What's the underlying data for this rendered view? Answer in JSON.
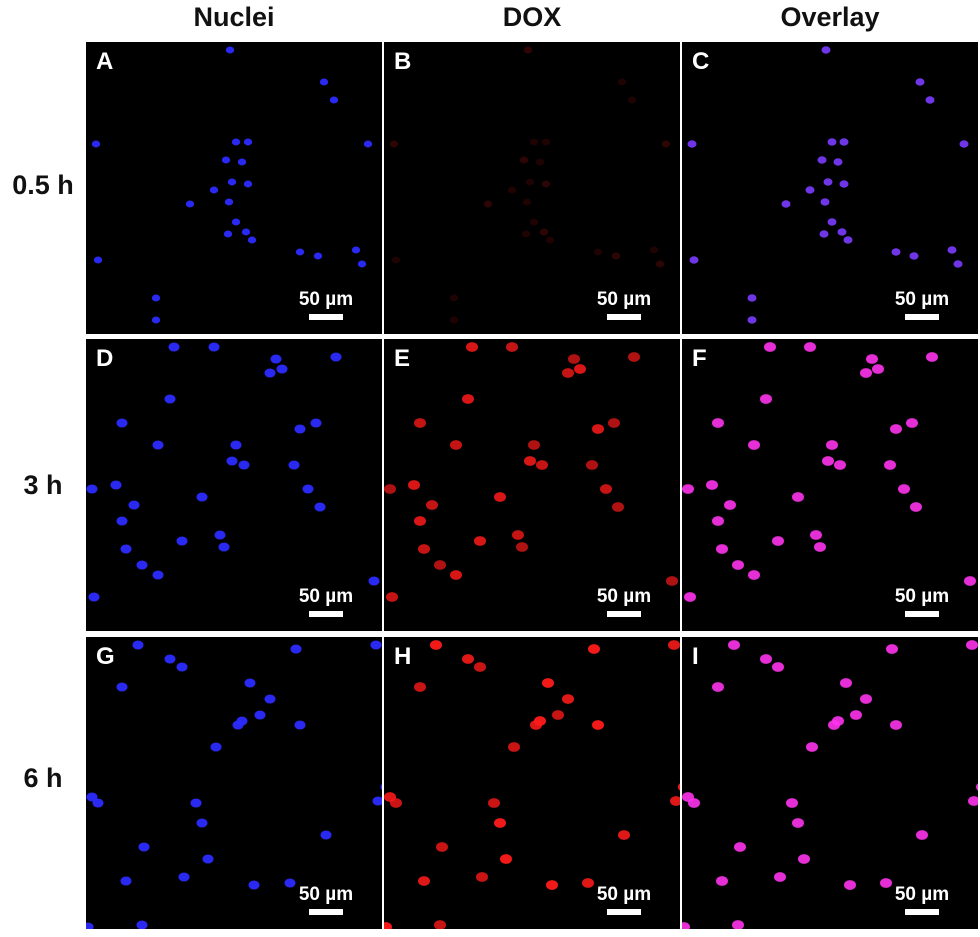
{
  "figure": {
    "columns": [
      {
        "title": "Nuclei",
        "channel": "nuclei"
      },
      {
        "title": "DOX",
        "channel": "dox"
      },
      {
        "title": "Overlay",
        "channel": "overlay"
      }
    ],
    "rows": [
      {
        "label": "0.5 h",
        "dox_intensity": 0.18,
        "panels": [
          "A",
          "B",
          "C"
        ]
      },
      {
        "label": "3 h",
        "dox_intensity": 0.85,
        "panels": [
          "D",
          "E",
          "F"
        ]
      },
      {
        "label": "6 h",
        "dox_intensity": 0.95,
        "panels": [
          "G",
          "H",
          "I"
        ]
      }
    ],
    "scale_bar_label": "50 µm",
    "colors": {
      "nuclei": "#2b2bff",
      "dox": "#ff1a1a",
      "overlay_low": "#7a3cff",
      "overlay_high": "#ff33ee",
      "background": "#000000",
      "text": "#111111"
    }
  }
}
